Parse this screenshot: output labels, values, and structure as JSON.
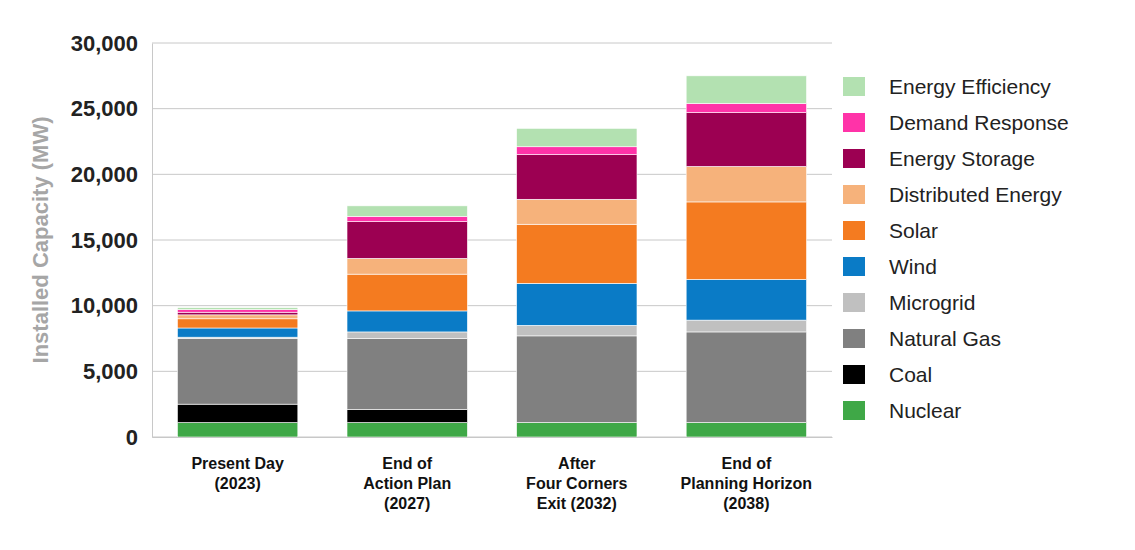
{
  "chart_data": {
    "type": "bar",
    "stacked": true,
    "grid": true,
    "legend": "right",
    "y_label": "Installed Capacity (MW)",
    "categories": [
      "Present Day\n(2023)",
      "End of\nAction Plan\n(2027)",
      "After\nFour Corners\nExit (2032)",
      "End of\nPlanning Horizon\n(2038)"
    ],
    "ylim": [
      0,
      30000
    ],
    "yticks": [
      0,
      {
        "value": 5000,
        "label": "5,000"
      },
      {
        "value": 10000,
        "label": "10,000"
      },
      {
        "value": 15000,
        "label": "15,000"
      },
      {
        "value": 20000,
        "label": "20,000"
      },
      {
        "value": 25000,
        "label": "25,000"
      },
      {
        "value": 30000,
        "label": "30,000"
      }
    ],
    "series": [
      {
        "name": "Nuclear",
        "color": "#3fa847",
        "values": [
          1100,
          1100,
          1100,
          1100
        ]
      },
      {
        "name": "Coal",
        "color": "#000000",
        "values": [
          1400,
          1000,
          0,
          0
        ]
      },
      {
        "name": "Natural Gas",
        "color": "#808080",
        "values": [
          5000,
          5400,
          6600,
          6900
        ]
      },
      {
        "name": "Microgrid",
        "color": "#c0c0c0",
        "values": [
          100,
          500,
          800,
          900
        ]
      },
      {
        "name": "Wind",
        "color": "#0a7bc6",
        "values": [
          700,
          1600,
          3200,
          3100
        ]
      },
      {
        "name": "Solar",
        "color": "#f47b20",
        "values": [
          700,
          2800,
          4500,
          5900
        ]
      },
      {
        "name": "Distributed Energy",
        "color": "#f6b27b",
        "values": [
          300,
          1200,
          1900,
          2700
        ]
      },
      {
        "name": "Energy Storage",
        "color": "#9c0052",
        "values": [
          200,
          2800,
          3400,
          4100
        ]
      },
      {
        "name": "Demand Response",
        "color": "#ff33a8",
        "values": [
          200,
          400,
          600,
          700
        ]
      },
      {
        "name": "Energy Efficiency",
        "color": "#b3e1b1",
        "values": [
          150,
          800,
          1400,
          2100
        ]
      }
    ]
  }
}
